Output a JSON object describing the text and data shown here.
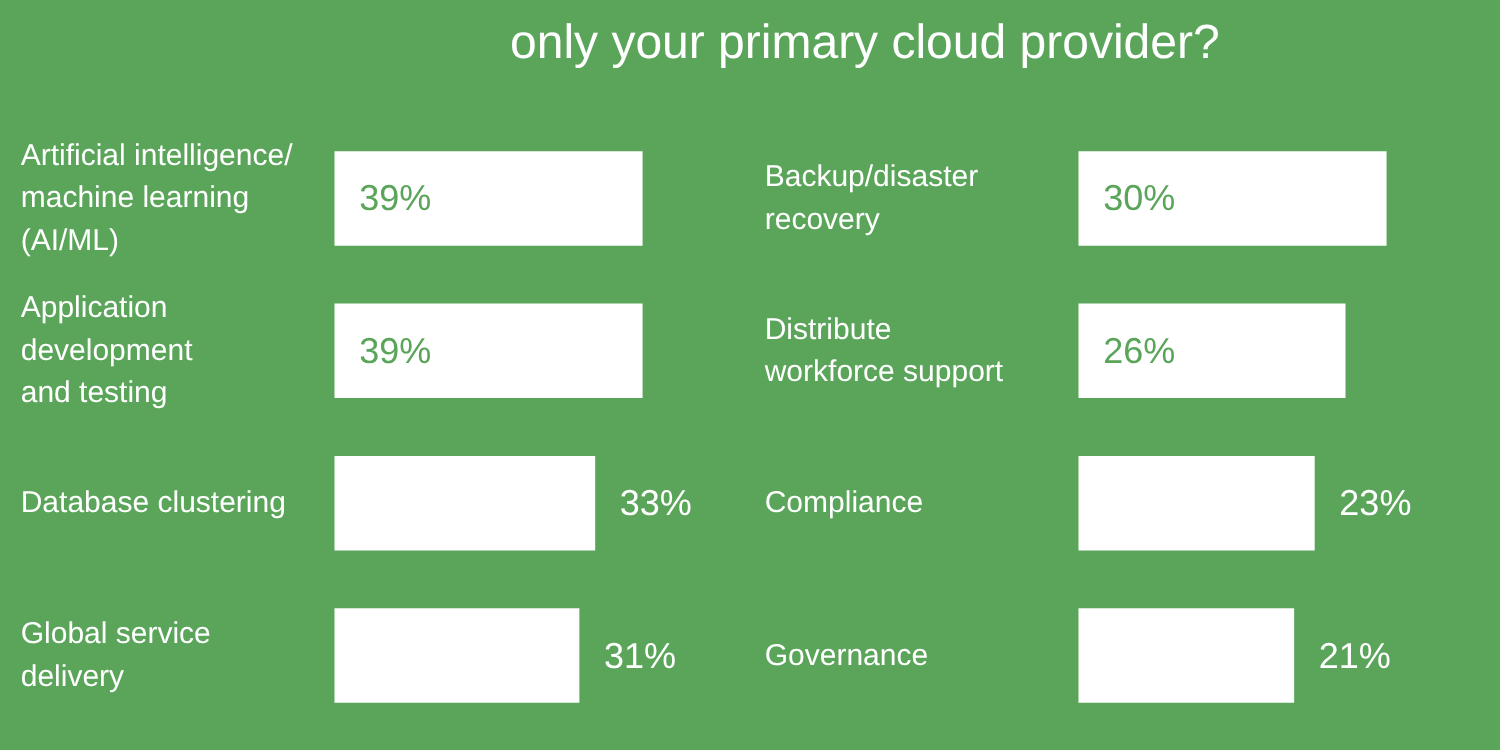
{
  "chart_data": [
    {
      "type": "bar",
      "orientation": "horizontal",
      "title": "only your primary cloud provider?",
      "categories": [
        "Artificial intelligence/\nmachine learning\n(AI/ML)",
        "Application\ndevelopment\nand testing",
        "Database clustering",
        "Global service\ndelivery"
      ],
      "values": [
        39,
        39,
        33,
        31
      ],
      "value_labels": [
        "39%",
        "39%",
        "33%",
        "31%"
      ],
      "color": "#ffffff",
      "grid": false,
      "tick_labels": false
    },
    {
      "type": "bar",
      "orientation": "horizontal",
      "categories": [
        "Backup/disaster\nrecovery",
        "Distribute\nworkforce support",
        "Compliance",
        "Governance"
      ],
      "values": [
        30,
        26,
        23,
        21
      ],
      "value_labels": [
        "30%",
        "26%",
        "23%",
        "21%"
      ],
      "color": "#ffffff",
      "grid": false,
      "tick_labels": false
    }
  ]
}
